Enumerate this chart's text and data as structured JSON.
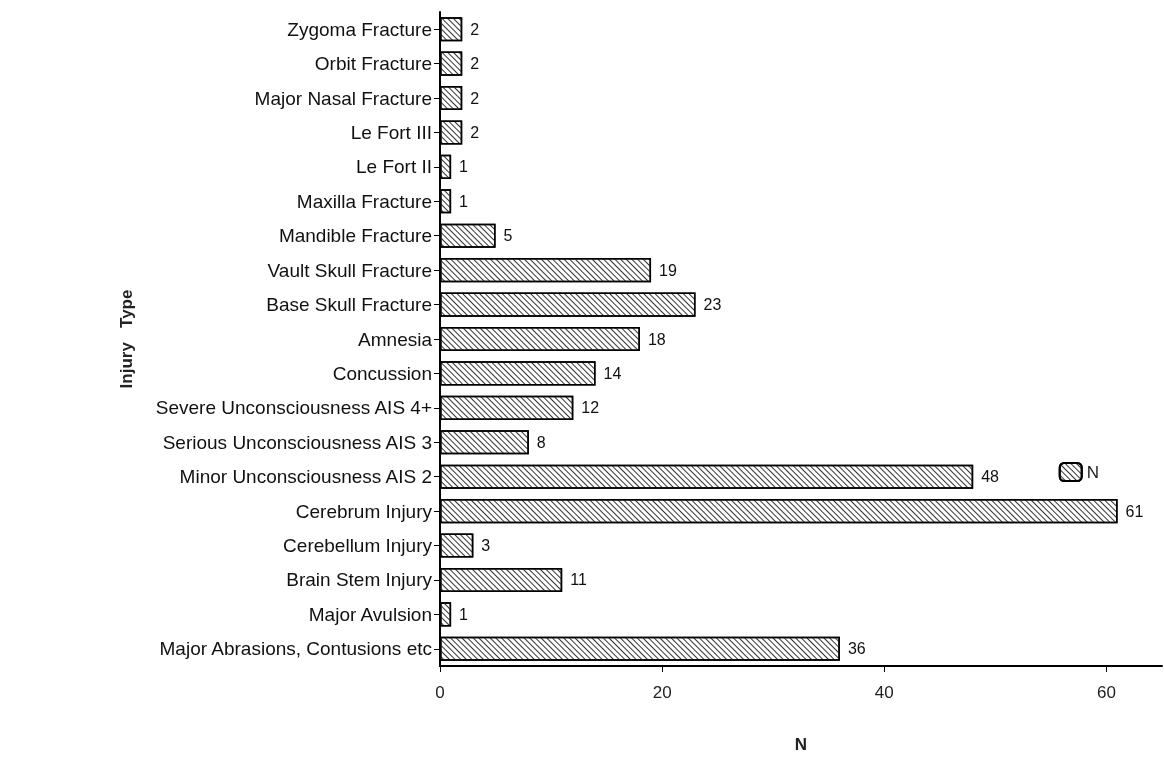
{
  "chart_data": {
    "type": "bar",
    "orientation": "horizontal",
    "xlabel": "N",
    "ylabel": "Injury   Type",
    "categories": [
      "Zygoma Fracture",
      "Orbit Fracture",
      "Major Nasal Fracture",
      "Le Fort III",
      "Le Fort II",
      "Maxilla Fracture",
      "Mandible Fracture",
      "Vault Skull Fracture",
      "Base Skull Fracture",
      "Amnesia",
      "Concussion",
      "Severe Unconsciousness AIS 4+",
      "Serious Unconsciousness AIS 3",
      "Minor Unconsciousness AIS 2",
      "Cerebrum Injury",
      "Cerebellum Injury",
      "Brain Stem Injury",
      "Major Avulsion",
      "Major Abrasions, Contusions etc"
    ],
    "series": [
      {
        "name": "N",
        "color": "#ffffff",
        "values": [
          2,
          2,
          2,
          2,
          1,
          1,
          5,
          19,
          23,
          18,
          14,
          12,
          8,
          48,
          61,
          3,
          11,
          1,
          36
        ]
      }
    ],
    "xlim": [
      0,
      65
    ],
    "xticks": [
      0,
      20,
      40,
      60
    ],
    "data_labels": true,
    "legend": "right",
    "grid": false
  }
}
